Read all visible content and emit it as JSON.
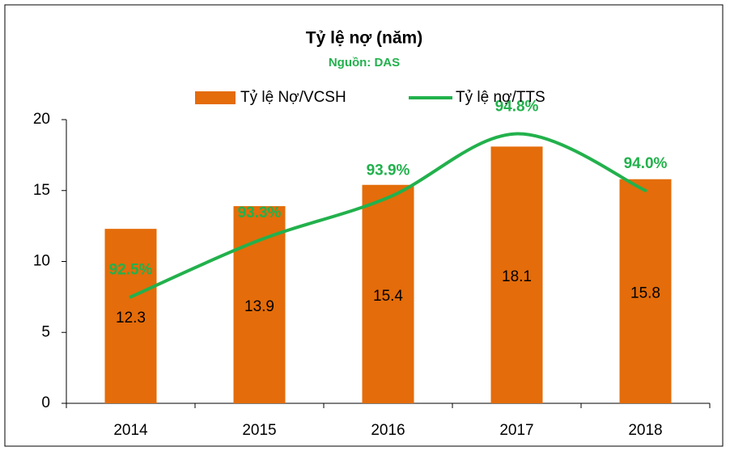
{
  "chart_data": {
    "type": "bar-line",
    "title": "Tỷ lệ nợ (năm)",
    "subtitle": "Nguồn: DAS",
    "categories": [
      "2014",
      "2015",
      "2016",
      "2017",
      "2018"
    ],
    "series": [
      {
        "name": "Tỷ lệ Nợ/VCSH",
        "type": "bar",
        "color": "#e46c0a",
        "values": [
          12.3,
          13.9,
          15.4,
          18.1,
          15.8
        ]
      },
      {
        "name": "Tỷ lệ nợ/TTS",
        "type": "line",
        "axis": "y2",
        "color": "#22b14c",
        "values": [
          92.5,
          93.3,
          93.9,
          94.8,
          94.0
        ],
        "value_labels": [
          "92.5%",
          "93.3%",
          "93.9%",
          "94.8%",
          "94.0%"
        ]
      }
    ],
    "ylim": [
      0,
      20
    ],
    "yticks": [
      0,
      5,
      10,
      15,
      20
    ],
    "y2lim": [
      91,
      95
    ],
    "legend": "top",
    "grid": false
  }
}
